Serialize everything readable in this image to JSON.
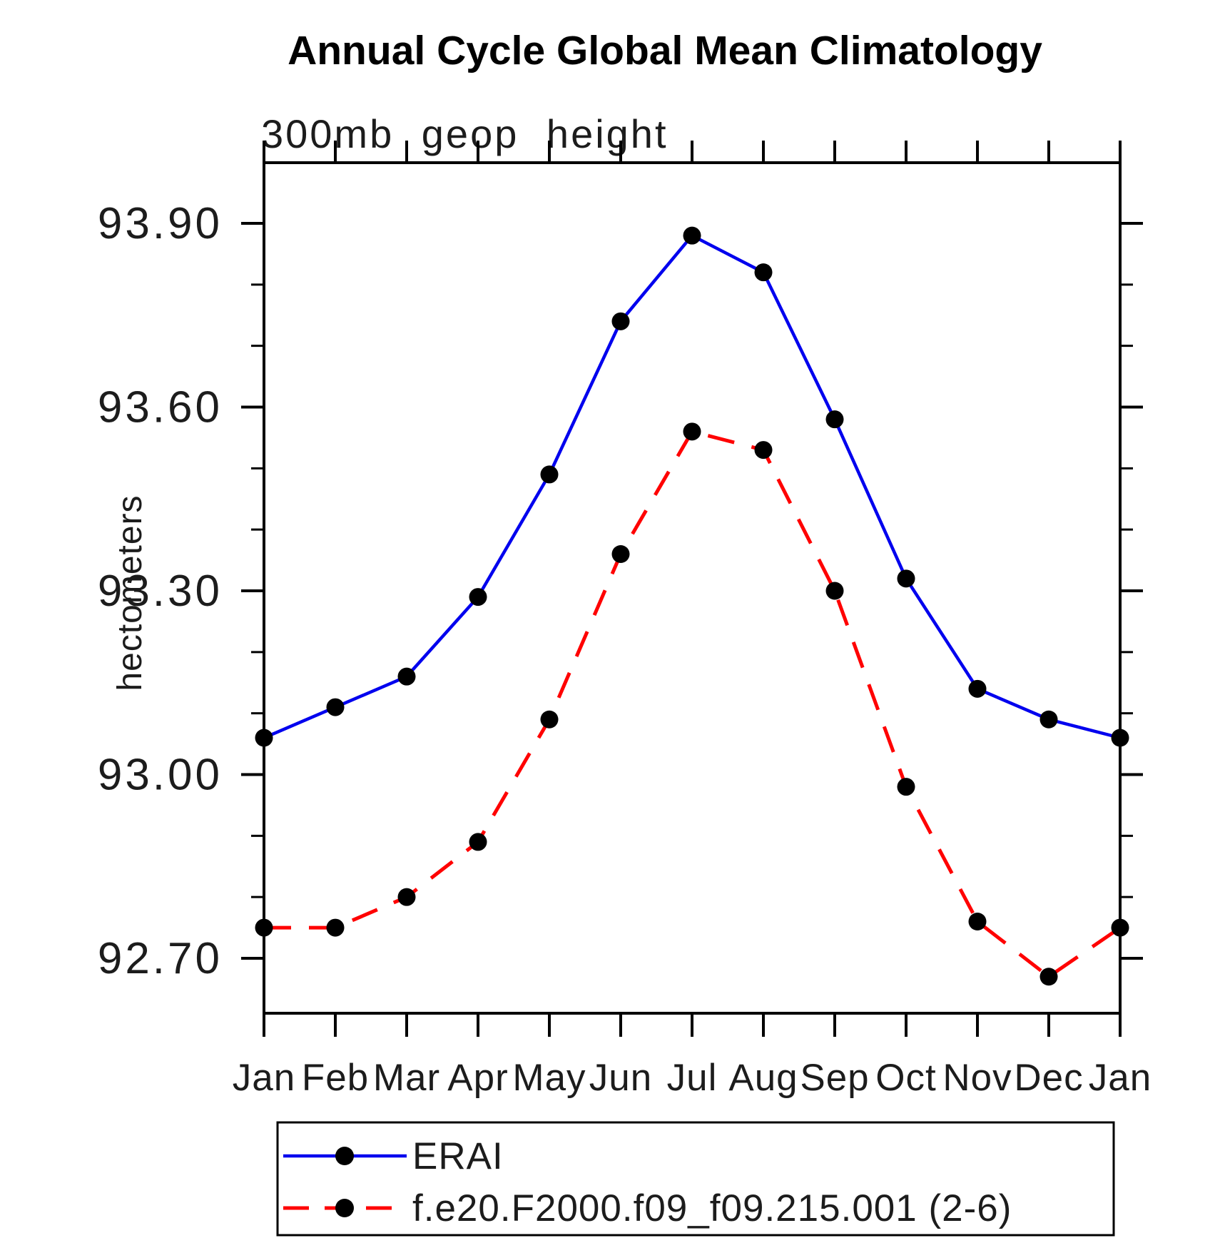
{
  "chart_data": {
    "type": "line",
    "title": "Annual Cycle Global Mean Climatology",
    "subtitle": "300mb geop height",
    "xlabel": "",
    "ylabel": "hectometers",
    "categories": [
      "Jan",
      "Feb",
      "Mar",
      "Apr",
      "May",
      "Jun",
      "Jul",
      "Aug",
      "Sep",
      "Oct",
      "Nov",
      "Dec",
      "Jan"
    ],
    "ylim": [
      92.61,
      94.0
    ],
    "yticks": [
      {
        "value": 93.9,
        "label": "93.90"
      },
      {
        "value": 93.6,
        "label": "93.60"
      },
      {
        "value": 93.3,
        "label": "93.30"
      },
      {
        "value": 93.0,
        "label": "93.00"
      },
      {
        "value": 92.7,
        "label": "92.70"
      }
    ],
    "ytick_minor_interval": 0.1,
    "grid": false,
    "legend_position": "bottom-left-box",
    "series": [
      {
        "name": "ERAI",
        "line_color": "#0000ee",
        "line_style": "solid",
        "marker": "filled-circle",
        "marker_color": "#000000",
        "values": [
          93.06,
          93.11,
          93.16,
          93.29,
          93.49,
          93.74,
          93.88,
          93.82,
          93.58,
          93.32,
          93.14,
          93.09,
          93.06
        ]
      },
      {
        "name": "f.e20.F2000.f09_f09.215.001 (2-6)",
        "line_color": "#ff0000",
        "line_style": "dashed",
        "marker": "filled-circle",
        "marker_color": "#000000",
        "values": [
          92.75,
          92.75,
          92.8,
          92.89,
          93.09,
          93.36,
          93.56,
          93.53,
          93.3,
          92.98,
          92.76,
          92.67,
          92.75
        ]
      }
    ]
  }
}
